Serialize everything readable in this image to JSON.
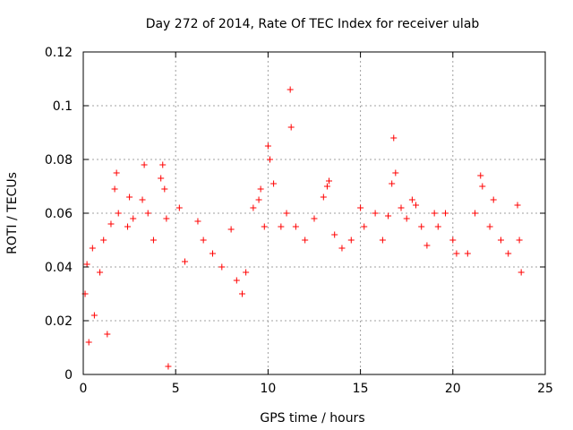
{
  "chart_data": {
    "type": "scatter",
    "title": "Day 272 of 2014, Rate Of TEC Index for receiver ulab",
    "xlabel": "GPS time / hours",
    "ylabel": "ROTI / TECUs",
    "xlim": [
      0,
      25
    ],
    "ylim": [
      0,
      0.12
    ],
    "xticks": [
      0,
      5,
      10,
      15,
      20,
      25
    ],
    "xtick_labels": [
      "0",
      "5",
      "10",
      "15",
      "20",
      "25"
    ],
    "yticks": [
      0,
      0.02,
      0.04,
      0.06,
      0.08,
      0.1,
      0.12
    ],
    "ytick_labels": [
      "0",
      "0.02",
      "0.04",
      "0.06",
      "0.08",
      "0.1",
      "0.12"
    ],
    "grid": true,
    "marker": "+",
    "color": "#ff0000",
    "series": [
      {
        "name": "ROTI",
        "points": [
          [
            0.1,
            0.03
          ],
          [
            0.2,
            0.041
          ],
          [
            0.3,
            0.012
          ],
          [
            0.5,
            0.047
          ],
          [
            0.6,
            0.022
          ],
          [
            0.9,
            0.038
          ],
          [
            1.1,
            0.05
          ],
          [
            1.3,
            0.015
          ],
          [
            1.5,
            0.056
          ],
          [
            1.7,
            0.069
          ],
          [
            1.8,
            0.075
          ],
          [
            1.9,
            0.06
          ],
          [
            2.4,
            0.055
          ],
          [
            2.5,
            0.066
          ],
          [
            2.7,
            0.058
          ],
          [
            3.2,
            0.065
          ],
          [
            3.3,
            0.078
          ],
          [
            3.5,
            0.06
          ],
          [
            3.8,
            0.05
          ],
          [
            4.2,
            0.073
          ],
          [
            4.3,
            0.078
          ],
          [
            4.4,
            0.069
          ],
          [
            4.5,
            0.058
          ],
          [
            4.6,
            0.003
          ],
          [
            5.2,
            0.062
          ],
          [
            5.5,
            0.042
          ],
          [
            6.2,
            0.057
          ],
          [
            6.5,
            0.05
          ],
          [
            7.0,
            0.045
          ],
          [
            7.5,
            0.04
          ],
          [
            8.0,
            0.054
          ],
          [
            8.3,
            0.035
          ],
          [
            8.6,
            0.03
          ],
          [
            8.8,
            0.038
          ],
          [
            9.2,
            0.062
          ],
          [
            9.5,
            0.065
          ],
          [
            9.6,
            0.069
          ],
          [
            9.8,
            0.055
          ],
          [
            10.0,
            0.085
          ],
          [
            10.1,
            0.08
          ],
          [
            10.3,
            0.071
          ],
          [
            10.7,
            0.055
          ],
          [
            11.0,
            0.06
          ],
          [
            11.2,
            0.106
          ],
          [
            11.25,
            0.092
          ],
          [
            11.5,
            0.055
          ],
          [
            12.0,
            0.05
          ],
          [
            12.5,
            0.058
          ],
          [
            13.0,
            0.066
          ],
          [
            13.2,
            0.07
          ],
          [
            13.3,
            0.072
          ],
          [
            13.6,
            0.052
          ],
          [
            14.0,
            0.047
          ],
          [
            14.5,
            0.05
          ],
          [
            15.0,
            0.062
          ],
          [
            15.2,
            0.055
          ],
          [
            15.8,
            0.06
          ],
          [
            16.2,
            0.05
          ],
          [
            16.5,
            0.059
          ],
          [
            16.7,
            0.071
          ],
          [
            16.8,
            0.088
          ],
          [
            16.9,
            0.075
          ],
          [
            17.2,
            0.062
          ],
          [
            17.5,
            0.058
          ],
          [
            17.8,
            0.065
          ],
          [
            18.0,
            0.063
          ],
          [
            18.3,
            0.055
          ],
          [
            18.6,
            0.048
          ],
          [
            19.0,
            0.06
          ],
          [
            19.2,
            0.055
          ],
          [
            19.6,
            0.06
          ],
          [
            20.0,
            0.05
          ],
          [
            20.2,
            0.045
          ],
          [
            20.8,
            0.045
          ],
          [
            21.2,
            0.06
          ],
          [
            21.5,
            0.074
          ],
          [
            21.6,
            0.07
          ],
          [
            22.0,
            0.055
          ],
          [
            22.2,
            0.065
          ],
          [
            22.6,
            0.05
          ],
          [
            23.0,
            0.045
          ],
          [
            23.5,
            0.063
          ],
          [
            23.6,
            0.05
          ],
          [
            23.7,
            0.038
          ]
        ]
      }
    ]
  }
}
